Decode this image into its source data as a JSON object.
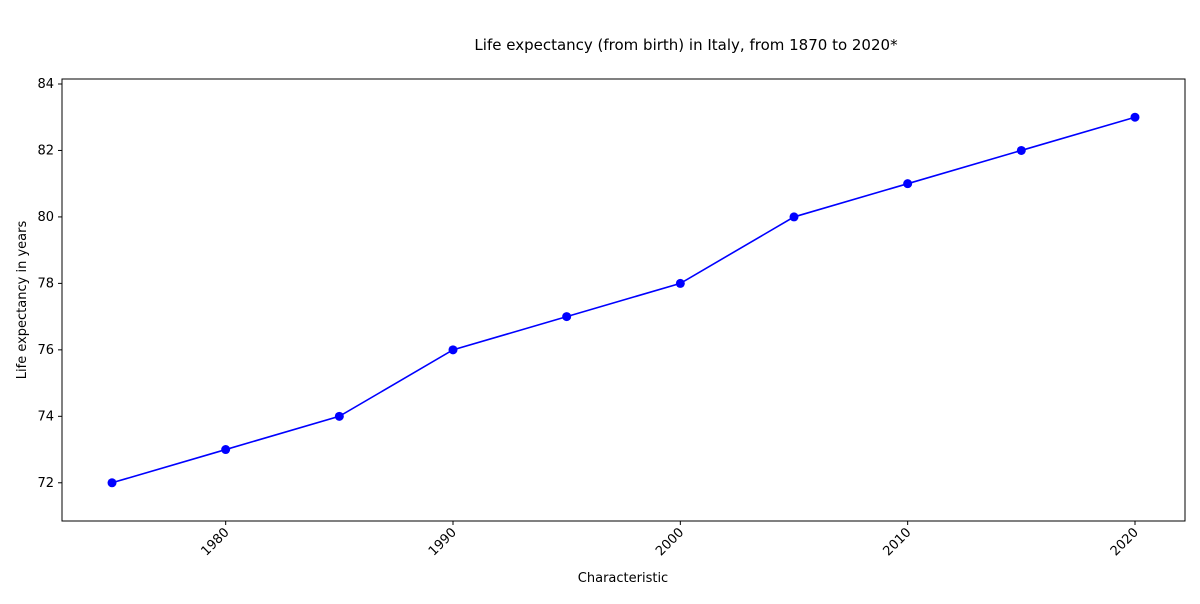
{
  "chart_data": {
    "type": "line",
    "title": "Life expectancy (from birth) in Italy, from 1870 to 2020*",
    "xlabel": "Characteristic",
    "ylabel": "Life expectancy in years",
    "x": [
      1975,
      1980,
      1985,
      1990,
      1995,
      2000,
      2005,
      2010,
      2015,
      2020
    ],
    "series": [
      {
        "values": [
          72,
          73,
          74,
          76,
          77,
          78,
          80,
          81,
          82,
          83
        ],
        "color": "#0000ff"
      }
    ],
    "xlim": [
      1972.8,
      2022.2
    ],
    "ylim": [
      70.85,
      84.15
    ],
    "xticks": [
      1980,
      1990,
      2000,
      2010,
      2020
    ],
    "yticks": [
      72,
      74,
      76,
      78,
      80,
      82,
      84
    ],
    "grid": false,
    "legend": "none",
    "marker": "circle"
  }
}
